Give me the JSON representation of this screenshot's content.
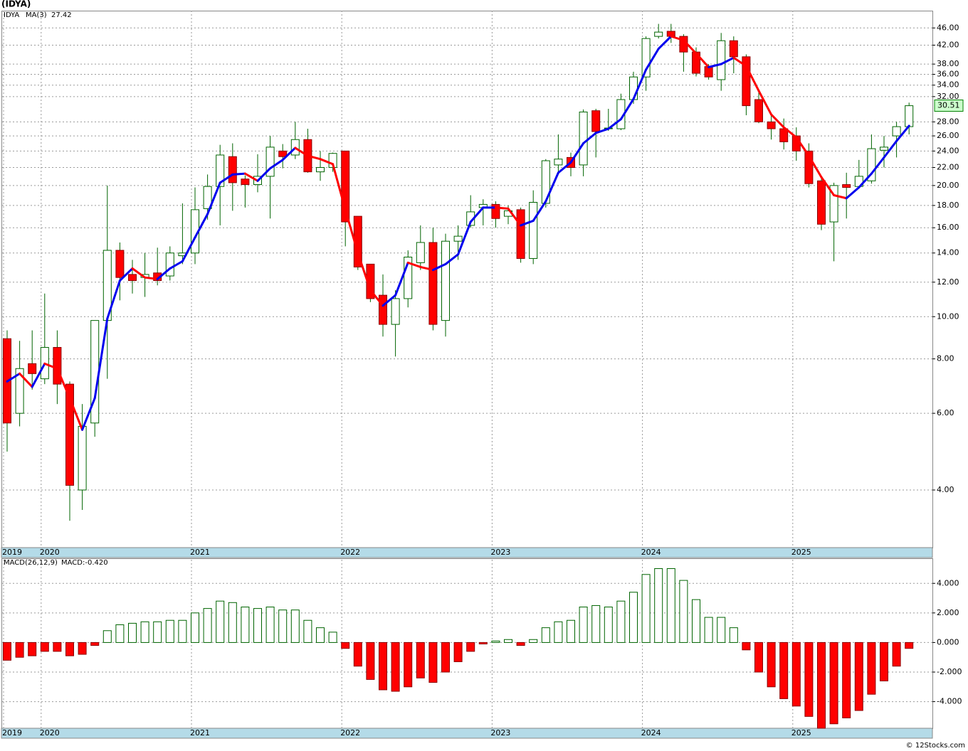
{
  "header": {
    "title": "(IDYA)",
    "footer": "© 12Stocks.com"
  },
  "chart_data": [
    {
      "type": "candlestick",
      "legend": {
        "symbol": "IDYA",
        "ma_name": "MA(3)",
        "ma_last": 27.42
      },
      "categories": [
        "2019",
        null,
        null,
        "2020",
        null,
        null,
        null,
        null,
        null,
        null,
        null,
        null,
        null,
        null,
        null,
        "2021",
        null,
        null,
        null,
        null,
        null,
        null,
        null,
        null,
        null,
        null,
        null,
        "2022",
        null,
        null,
        null,
        null,
        null,
        null,
        null,
        null,
        null,
        null,
        null,
        "2023",
        null,
        null,
        null,
        null,
        null,
        null,
        null,
        null,
        null,
        null,
        null,
        "2024",
        null,
        null,
        null,
        null,
        null,
        null,
        null,
        null,
        null,
        null,
        null,
        "2025",
        null,
        null,
        null,
        null,
        null,
        null,
        null,
        null,
        null
      ],
      "open": [
        8.9,
        6.0,
        7.8,
        7.2,
        8.5,
        7.0,
        4.0,
        5.7,
        9.8,
        14.2,
        12.5,
        12.3,
        12.6,
        12.4,
        13.8,
        14.0,
        17.7,
        19.9,
        23.3,
        20.7,
        20.1,
        21.0,
        24.0,
        23.5,
        25.5,
        21.5,
        22.0,
        24.0,
        17.0,
        13.2,
        11.2,
        9.6,
        11.0,
        13.3,
        14.8,
        9.8,
        14.9,
        16.2,
        17.8,
        18.1,
        17.0,
        17.6,
        13.6,
        18.2,
        22.3,
        23.2,
        22.3,
        29.7,
        27.0,
        27.0,
        31.5,
        35.5,
        44.0,
        45.2,
        44.0,
        40.5,
        37.5,
        35.0,
        43.0,
        39.5,
        31.5,
        28.0,
        27.0,
        26.0,
        24.0,
        20.5,
        16.5,
        20.1,
        19.9,
        20.5,
        24.1,
        26.0,
        27.3
      ],
      "high": [
        9.3,
        8.8,
        9.3,
        11.3,
        9.3,
        7.1,
        6.3,
        9.8,
        20.0,
        14.8,
        13.5,
        14.0,
        14.4,
        14.5,
        18.2,
        19.8,
        21.2,
        24.8,
        25.0,
        21.1,
        23.6,
        26.0,
        24.9,
        28.0,
        27.0,
        24.0,
        23.8,
        24.0,
        17.0,
        13.2,
        12.5,
        11.5,
        14.2,
        16.2,
        16.0,
        15.5,
        16.2,
        19.0,
        18.6,
        18.4,
        18.0,
        17.8,
        19.5,
        23.0,
        26.2,
        23.8,
        29.9,
        30.0,
        30.0,
        32.5,
        36.5,
        44.0,
        47.0,
        47.0,
        44.5,
        41.5,
        38.0,
        44.8,
        44.0,
        40.0,
        32.8,
        29.0,
        28.5,
        27.2,
        25.0,
        21.0,
        20.3,
        21.4,
        22.9,
        26.2,
        26.0,
        28.0,
        31.0
      ],
      "low": [
        4.9,
        5.6,
        6.8,
        7.0,
        6.3,
        3.4,
        3.6,
        5.3,
        7.2,
        10.9,
        11.3,
        11.1,
        11.8,
        12.1,
        13.2,
        13.2,
        16.7,
        16.2,
        17.5,
        17.8,
        19.3,
        16.8,
        21.9,
        23.0,
        21.4,
        20.5,
        21.5,
        14.5,
        12.8,
        10.8,
        9.0,
        8.1,
        10.5,
        12.8,
        9.3,
        9.0,
        13.5,
        16.0,
        16.2,
        16.0,
        16.3,
        13.3,
        13.2,
        17.8,
        21.5,
        21.0,
        21.0,
        23.2,
        26.7,
        26.8,
        30.8,
        33.0,
        43.5,
        42.5,
        36.5,
        35.6,
        35.0,
        33.0,
        36.2,
        29.0,
        27.8,
        25.5,
        24.2,
        22.8,
        19.8,
        15.8,
        13.4,
        16.8,
        19.8,
        20.2,
        22.0,
        23.2,
        26.2
      ],
      "close": [
        5.7,
        7.6,
        7.4,
        8.5,
        7.0,
        4.1,
        5.6,
        9.8,
        14.2,
        12.3,
        12.1,
        12.5,
        12.1,
        14.0,
        14.0,
        17.6,
        19.9,
        23.5,
        20.3,
        20.1,
        21.0,
        24.5,
        23.3,
        25.5,
        21.5,
        22.0,
        23.7,
        16.5,
        13.0,
        11.0,
        9.6,
        11.0,
        13.7,
        14.8,
        9.6,
        14.9,
        15.3,
        17.4,
        18.1,
        16.8,
        17.5,
        13.6,
        18.3,
        22.8,
        23.0,
        22.0,
        29.5,
        26.6,
        27.1,
        31.5,
        35.5,
        43.5,
        45.0,
        44.0,
        40.5,
        36.2,
        35.5,
        43.0,
        39.5,
        30.5,
        28.0,
        27.0,
        25.2,
        24.0,
        20.2,
        16.3,
        20.0,
        19.8,
        21.0,
        24.3,
        24.5,
        27.3,
        30.5
      ],
      "up_color": "#ffffff",
      "down_color": "#ff0000",
      "up_edge": "#006400",
      "down_edge": "#8b0000",
      "ma": {
        "values": [
          7.1,
          7.4,
          6.9,
          7.8,
          7.6,
          6.5,
          5.5,
          6.5,
          9.9,
          12.1,
          12.9,
          12.3,
          12.2,
          12.9,
          13.4,
          15.2,
          17.2,
          20.3,
          21.2,
          21.3,
          20.5,
          21.9,
          22.9,
          24.4,
          23.4,
          23.0,
          22.4,
          17.6,
          14.0,
          11.5,
          10.6,
          11.2,
          13.3,
          13.0,
          12.8,
          13.2,
          13.9,
          16.5,
          17.8,
          17.8,
          17.7,
          16.2,
          16.6,
          18.4,
          21.4,
          22.6,
          25.0,
          26.4,
          27.0,
          28.4,
          31.6,
          36.9,
          41.2,
          44.0,
          43.1,
          40.2,
          37.4,
          38.0,
          39.3,
          37.6,
          33.0,
          29.1,
          27.2,
          25.8,
          23.4,
          20.9,
          19.0,
          18.7,
          19.8,
          21.3,
          23.2,
          25.3,
          27.42
        ],
        "up_color": "#0000ee",
        "down_color": "#ff0000"
      },
      "last_price": 30.51,
      "log_scale": true,
      "grid": true,
      "ylim": [
        2.95,
        50.4
      ],
      "yticks": [
        {
          "value": 4,
          "label": "4.00"
        },
        {
          "value": 6,
          "label": "6.00"
        },
        {
          "value": 8,
          "label": "8.00"
        },
        {
          "value": 10,
          "label": "10.00"
        },
        {
          "value": 12,
          "label": "12.00"
        },
        {
          "value": 14,
          "label": "14.00"
        },
        {
          "value": 16,
          "label": "16.00"
        },
        {
          "value": 18,
          "label": "18.00"
        },
        {
          "value": 20,
          "label": "20.00"
        },
        {
          "value": 22,
          "label": "22.00"
        },
        {
          "value": 24,
          "label": "24.00"
        },
        {
          "value": 26,
          "label": "26.00"
        },
        {
          "value": 28,
          "label": "28.00"
        },
        {
          "value": 32,
          "label": "32.00"
        },
        {
          "value": 34,
          "label": "34.00"
        },
        {
          "value": 36,
          "label": "36.00"
        },
        {
          "value": 38,
          "label": "38.00"
        },
        {
          "value": 42,
          "label": "42.00"
        },
        {
          "value": 46,
          "label": "46.00"
        }
      ]
    },
    {
      "type": "bar",
      "title": "MACD(26,12,9)",
      "value_label": "MACD:-0.420",
      "categories": [
        "2019",
        null,
        null,
        "2020",
        null,
        null,
        null,
        null,
        null,
        null,
        null,
        null,
        null,
        null,
        null,
        "2021",
        null,
        null,
        null,
        null,
        null,
        null,
        null,
        null,
        null,
        null,
        null,
        "2022",
        null,
        null,
        null,
        null,
        null,
        null,
        null,
        null,
        null,
        null,
        null,
        "2023",
        null,
        null,
        null,
        null,
        null,
        null,
        null,
        null,
        null,
        null,
        null,
        "2024",
        null,
        null,
        null,
        null,
        null,
        null,
        null,
        null,
        null,
        null,
        null,
        "2025",
        null,
        null,
        null,
        null,
        null,
        null,
        null,
        null,
        null
      ],
      "values": [
        -1.2,
        -1.0,
        -0.9,
        -0.6,
        -0.6,
        -0.9,
        -0.8,
        -0.2,
        0.8,
        1.2,
        1.3,
        1.4,
        1.4,
        1.5,
        1.5,
        2.0,
        2.3,
        2.8,
        2.7,
        2.4,
        2.3,
        2.4,
        2.2,
        2.2,
        1.5,
        1.0,
        0.7,
        -0.4,
        -1.6,
        -2.5,
        -3.2,
        -3.3,
        -3.0,
        -2.4,
        -2.7,
        -2.0,
        -1.3,
        -0.6,
        -0.1,
        0.1,
        0.2,
        -0.2,
        0.2,
        1.0,
        1.4,
        1.5,
        2.4,
        2.5,
        2.4,
        2.8,
        3.4,
        4.6,
        5.0,
        5.0,
        4.2,
        2.9,
        1.7,
        1.7,
        1.0,
        -0.5,
        -2.0,
        -3.0,
        -3.8,
        -4.3,
        -5.0,
        -5.8,
        -5.5,
        -5.1,
        -4.6,
        -3.5,
        -2.6,
        -1.6,
        -0.4
      ],
      "pos_color": "#ffffff",
      "pos_edge": "#006400",
      "neg_color": "#ff0000",
      "neg_edge": "#8b0000",
      "grid": true,
      "ylim": [
        -5.8,
        5.6
      ],
      "yticks": [
        {
          "value": -4,
          "label": "-4.000"
        },
        {
          "value": -2,
          "label": "-2.000"
        },
        {
          "value": 0,
          "label": "0.000"
        },
        {
          "value": 2,
          "label": "2.000"
        },
        {
          "value": 4,
          "label": "4.000"
        }
      ]
    }
  ]
}
